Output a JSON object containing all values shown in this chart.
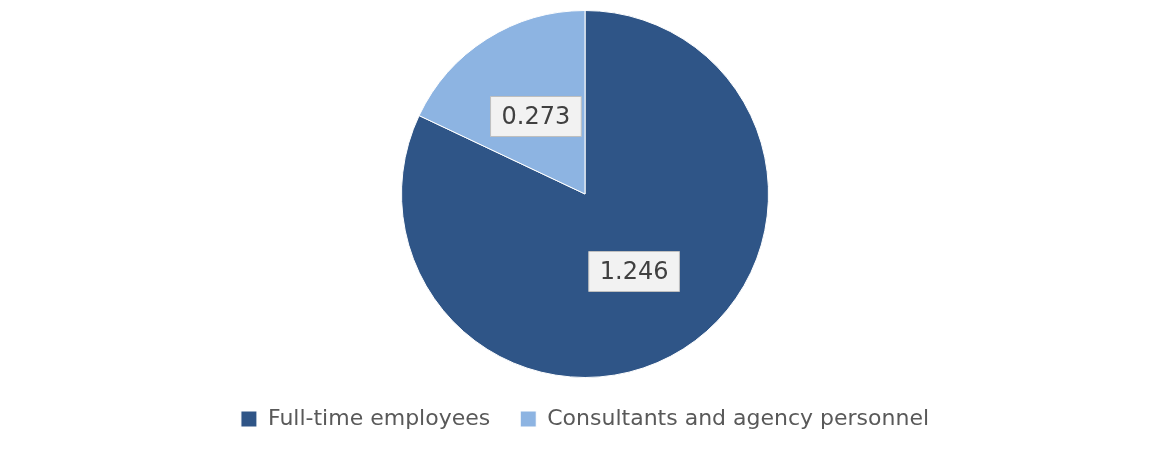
{
  "chart_data": {
    "type": "pie",
    "categories": [
      "Full-time employees",
      "Consultants and agency personnel"
    ],
    "values": [
      1.246,
      0.273
    ],
    "colors": [
      "#2f5587",
      "#8db4e2"
    ],
    "data_labels": true,
    "legend": "bottom"
  }
}
